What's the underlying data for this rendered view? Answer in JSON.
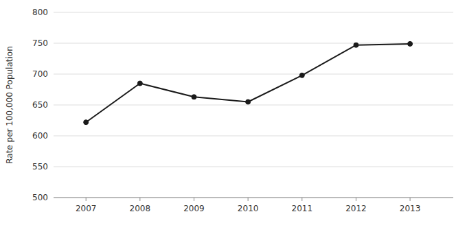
{
  "chart_data": {
    "type": "line",
    "x": [
      2007,
      2008,
      2009,
      2010,
      2011,
      2012,
      2013
    ],
    "values": [
      622,
      685,
      663,
      655,
      698,
      747,
      749
    ],
    "ylabel": "Rate per 100,000 Population",
    "xlim": [
      2006.4,
      2013.8
    ],
    "xticks": [
      2007,
      2008,
      2009,
      2010,
      2011,
      2012,
      2013
    ],
    "ylim": [
      500,
      800
    ],
    "yticks": [
      500,
      550,
      600,
      650,
      700,
      750,
      800
    ],
    "color": "#1a1a1a",
    "marker": "circle",
    "grid": true
  }
}
